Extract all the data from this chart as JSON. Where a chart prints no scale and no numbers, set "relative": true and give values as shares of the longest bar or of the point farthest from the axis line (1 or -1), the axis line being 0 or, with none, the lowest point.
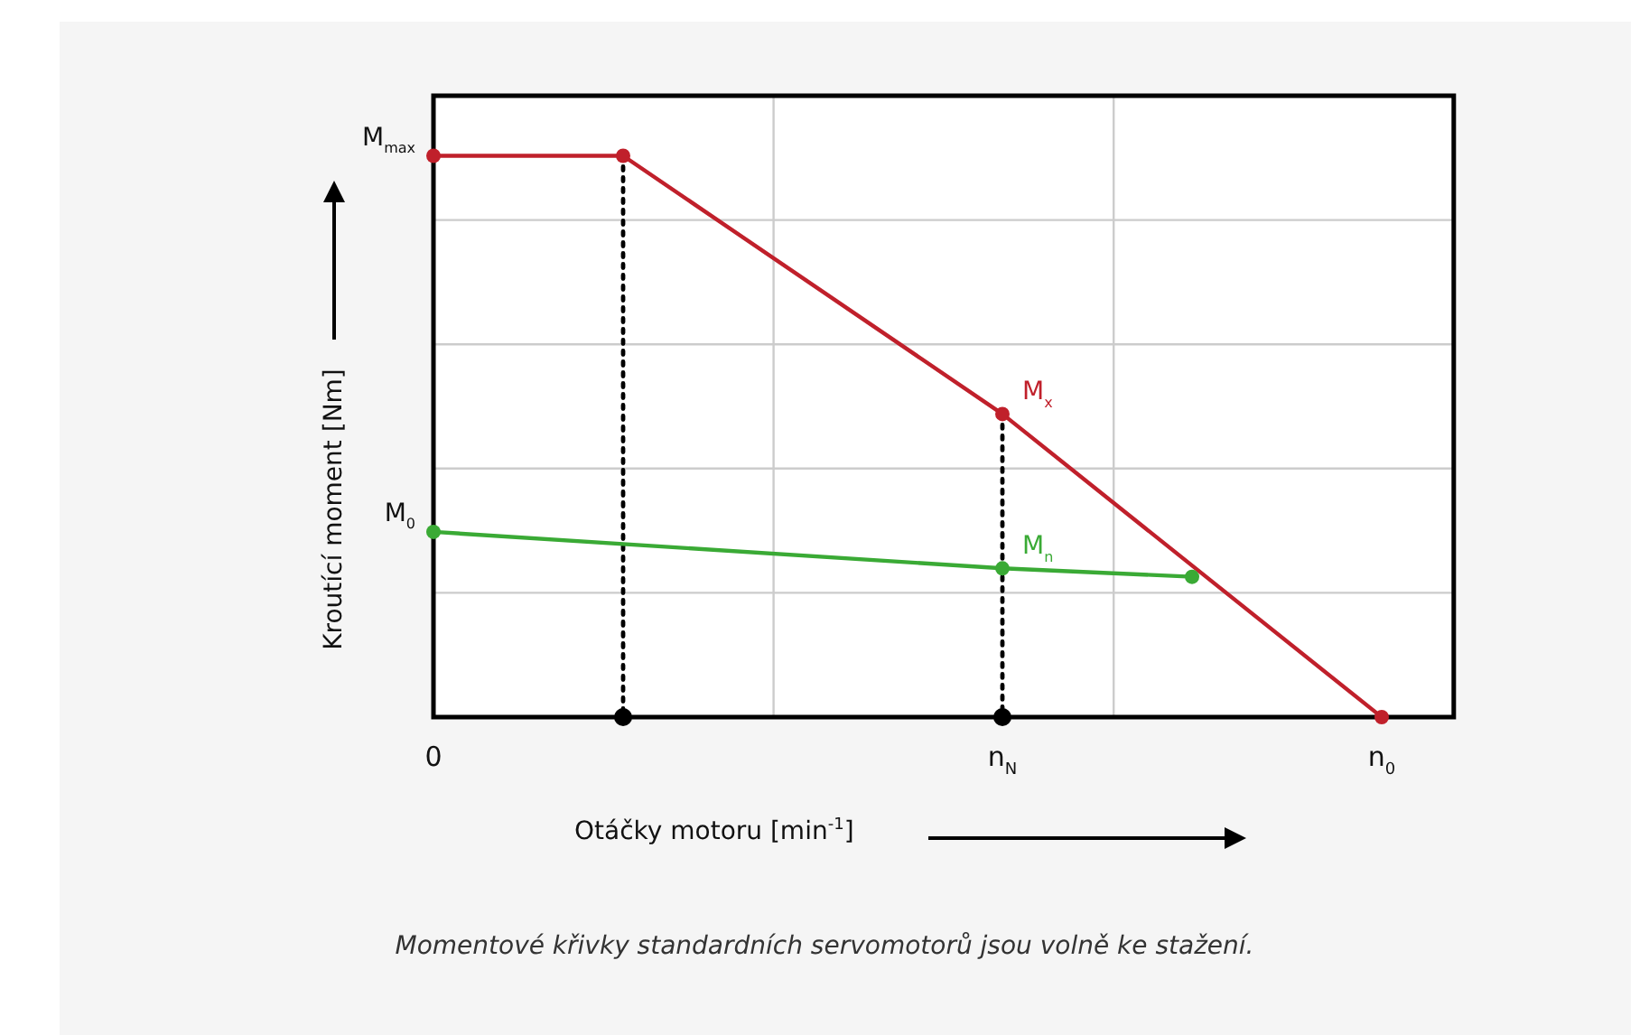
{
  "chart_data": {
    "type": "line",
    "relative": true,
    "xlabel": "Otáčky motoru [min$^{-1}$]",
    "ylabel": "Kroutící moment [Nm]",
    "categories": [
      "0",
      null,
      null,
      "n$_{N}$",
      null,
      "n$_{0}$"
    ],
    "series": [
      {
        "color": "#c0202b",
        "values": [
          1,
          1,
          null,
          0.54,
          null,
          0
        ]
      },
      {
        "color": "#3aaa35",
        "values": [
          0.33,
          null,
          null,
          0.265,
          0.25,
          null
        ]
      },
      {
        "type": "scatter",
        "color": "#000000",
        "values": [
          null,
          0,
          null,
          0,
          null,
          null
        ]
      }
    ],
    "annotations": [
      {
        "text": "M$_{max}$",
        "x": "0",
        "y": 1
      },
      {
        "text": "M$_{0}$",
        "x": "0",
        "y": 0.33
      },
      {
        "text": "M$_{x}$",
        "x": "n$_{N}$",
        "y": 0.54
      },
      {
        "text": "M$_{n}$",
        "x": "n$_{N}$",
        "y": 0.265
      },
      "Momentové křivky standardních servomotorů jsou volně ke stažení."
    ],
    "grid": true,
    "marker": "circle",
    "line_style": "solid",
    "legend": false
  }
}
